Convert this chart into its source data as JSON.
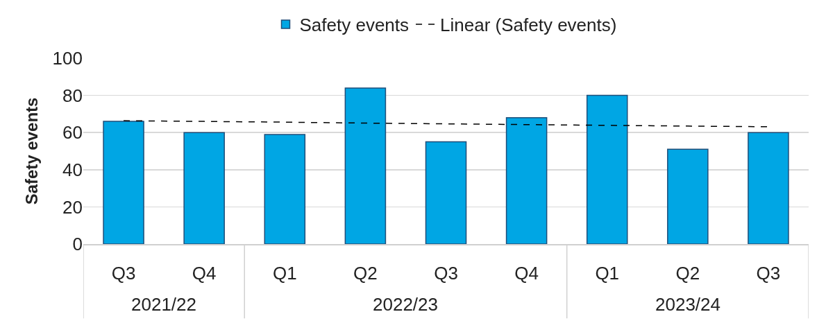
{
  "chart_data": {
    "type": "bar",
    "ylabel": "Safety events",
    "categories": [
      "Q3",
      "Q4",
      "Q1",
      "Q2",
      "Q3",
      "Q4",
      "Q1",
      "Q2",
      "Q3"
    ],
    "series": [
      {
        "name": "Safety events",
        "color": "#00a6e4",
        "values": [
          66,
          60,
          59,
          84,
          55,
          68,
          80,
          51,
          60
        ]
      },
      {
        "name": "Linear (Safety events)",
        "type": "line",
        "color": "#000000",
        "line_style": "dashed",
        "values": [
          66.4,
          66.0,
          65.6,
          65.1,
          64.7,
          64.3,
          63.9,
          63.5,
          63.1
        ]
      }
    ],
    "annotations": [
      "2021/22",
      "2022/23",
      "2023/24"
    ],
    "ylim": [
      0,
      100
    ],
    "yticks": [
      0,
      20,
      40,
      60,
      80,
      100
    ],
    "grid": "y",
    "legend": "top"
  }
}
